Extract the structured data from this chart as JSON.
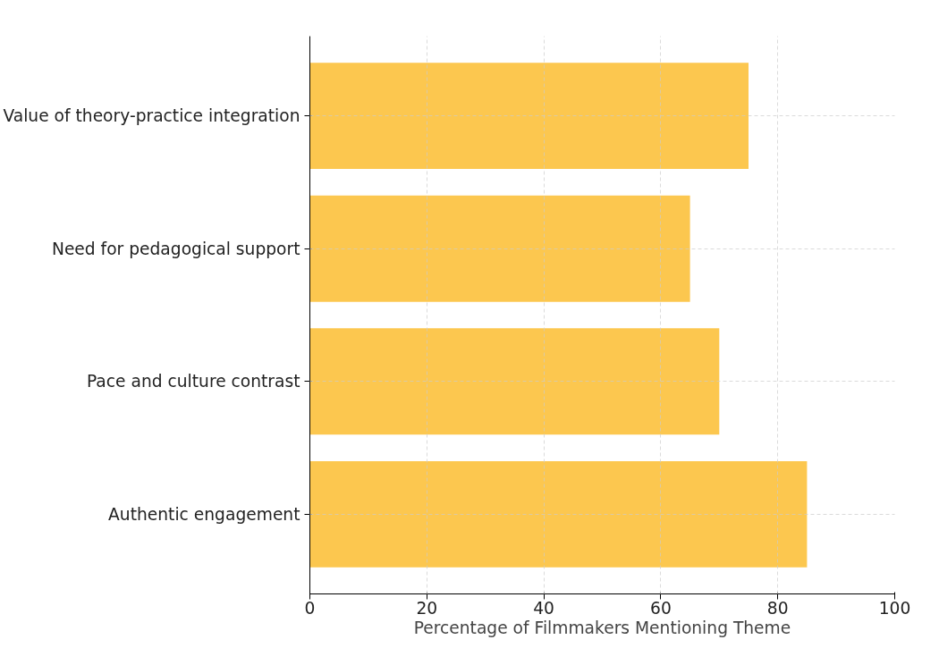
{
  "chart_data": {
    "type": "bar",
    "orientation": "horizontal",
    "xlabel": "Percentage of Filmmakers Mentioning Theme",
    "categories": [
      "Value of theory-practice integration",
      "Need for pedagogical support",
      "Pace and culture contrast",
      "Authentic engagement"
    ],
    "values": [
      75,
      65,
      70,
      85
    ],
    "color": "#fcc74f",
    "xlim": [
      0,
      100
    ],
    "xticks": [
      0,
      20,
      40,
      60,
      80,
      100
    ],
    "grid": true
  }
}
